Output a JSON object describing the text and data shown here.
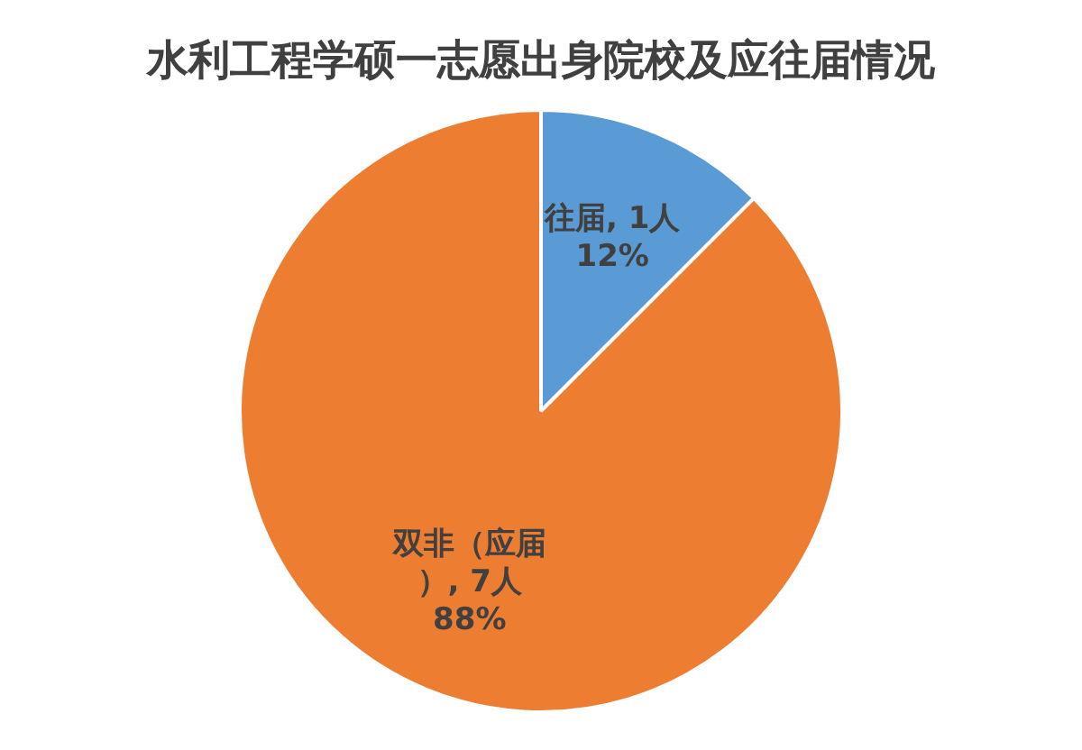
{
  "chart_data": {
    "type": "pie",
    "title": "水利工程学硕一志愿出身院校及应往届情况",
    "categories": [
      "往届",
      "双非（应届）"
    ],
    "values": [
      1,
      7
    ],
    "colors": [
      "#5b9bd5",
      "#ed7d31"
    ],
    "value_labels": [
      "1人\n12%",
      "7人\n88%"
    ]
  }
}
